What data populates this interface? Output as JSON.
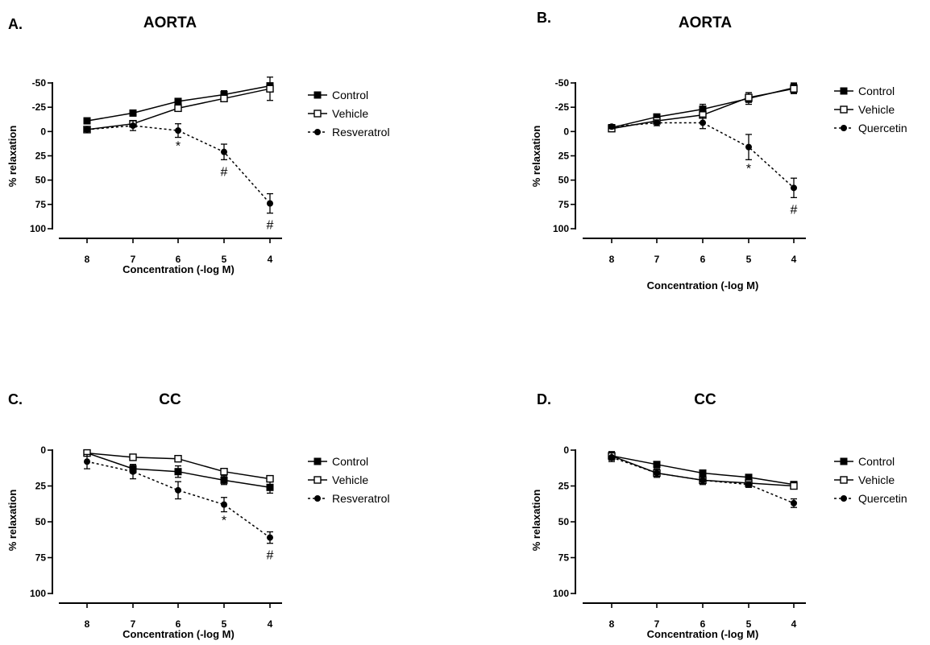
{
  "chart_data": [
    {
      "type": "line",
      "panel_label": "A.",
      "title": "AORTA",
      "xlabel": "Concentration (-log M)",
      "ylabel": "% relaxation",
      "x_ticks": [
        "8",
        "7",
        "6",
        "5",
        "4"
      ],
      "y_ticks": [
        "-50",
        "-25",
        "0",
        "25",
        "50",
        "75",
        "100"
      ],
      "ylim": [
        -50,
        100
      ],
      "y_reversed": true,
      "legend_position": "right",
      "series": [
        {
          "name": "Control",
          "marker": "filled-square",
          "line": "solid",
          "x": [
            8,
            7,
            6,
            5,
            4
          ],
          "y": [
            -11,
            -19,
            -31,
            -38,
            -47
          ],
          "err": [
            2,
            3,
            3,
            4,
            3
          ]
        },
        {
          "name": "Vehicle",
          "marker": "open-square",
          "line": "solid",
          "x": [
            8,
            7,
            6,
            5,
            4
          ],
          "y": [
            -2,
            -8,
            -24,
            -34,
            -44
          ],
          "err": [
            2,
            3,
            3,
            3,
            12
          ]
        },
        {
          "name": "Resveratrol",
          "marker": "filled-circle",
          "line": "dashed",
          "x": [
            8,
            7,
            6,
            5,
            4
          ],
          "y": [
            -2,
            -6,
            -1,
            21,
            74
          ],
          "err": [
            2,
            5,
            7,
            8,
            10
          ]
        }
      ],
      "annotations": [
        {
          "text": "*",
          "x": 6
        },
        {
          "text": "#",
          "x": 5
        },
        {
          "text": "#",
          "x": 4
        }
      ]
    },
    {
      "type": "line",
      "panel_label": "B.",
      "title": "AORTA",
      "xlabel": "Concentration (-log M)",
      "ylabel": "% relaxation",
      "x_ticks": [
        "8",
        "7",
        "6",
        "5",
        "4"
      ],
      "y_ticks": [
        "-50",
        "-25",
        "0",
        "25",
        "50",
        "75",
        "100"
      ],
      "ylim": [
        -50,
        100
      ],
      "y_reversed": true,
      "legend_position": "right",
      "series": [
        {
          "name": "Control",
          "marker": "filled-square",
          "line": "solid",
          "x": [
            8,
            7,
            6,
            5,
            4
          ],
          "y": [
            -4,
            -15,
            -23,
            -34,
            -45
          ],
          "err": [
            2,
            3,
            5,
            6,
            5
          ]
        },
        {
          "name": "Vehicle",
          "marker": "open-square",
          "line": "solid",
          "x": [
            8,
            7,
            6,
            5,
            4
          ],
          "y": [
            -3,
            -11,
            -17,
            -35,
            -44
          ],
          "err": [
            2,
            3,
            3,
            5,
            5
          ]
        },
        {
          "name": "Quercetin",
          "marker": "filled-circle",
          "line": "dashed",
          "x": [
            8,
            7,
            6,
            5,
            4
          ],
          "y": [
            -5,
            -9,
            -9,
            16,
            58
          ],
          "err": [
            2,
            3,
            6,
            13,
            10
          ]
        }
      ],
      "annotations": [
        {
          "text": "*",
          "x": 5
        },
        {
          "text": "#",
          "x": 4
        }
      ]
    },
    {
      "type": "line",
      "panel_label": "C.",
      "title": "CC",
      "xlabel": "Concentration (-log M)",
      "ylabel": "% relaxation",
      "x_ticks": [
        "8",
        "7",
        "6",
        "5",
        "4"
      ],
      "y_ticks": [
        "0",
        "25",
        "50",
        "75",
        "100"
      ],
      "ylim": [
        0,
        100
      ],
      "y_reversed": true,
      "legend_position": "right",
      "series": [
        {
          "name": "Control",
          "marker": "filled-square",
          "line": "solid",
          "x": [
            8,
            7,
            6,
            5,
            4
          ],
          "y": [
            2,
            13,
            15,
            21,
            26
          ],
          "err": [
            1,
            3,
            4,
            3,
            4
          ]
        },
        {
          "name": "Vehicle",
          "marker": "open-square",
          "line": "solid",
          "x": [
            8,
            7,
            6,
            5,
            4
          ],
          "y": [
            2,
            5,
            6,
            15,
            20
          ],
          "err": [
            1,
            1,
            1,
            1,
            2
          ]
        },
        {
          "name": "Resveratrol",
          "marker": "filled-circle",
          "line": "dashed",
          "x": [
            8,
            7,
            6,
            5,
            4
          ],
          "y": [
            8,
            15,
            28,
            38,
            61
          ],
          "err": [
            5,
            5,
            6,
            5,
            4
          ]
        }
      ],
      "annotations": [
        {
          "text": "*",
          "x": 5
        },
        {
          "text": "#",
          "x": 4
        }
      ]
    },
    {
      "type": "line",
      "panel_label": "D.",
      "title": "CC",
      "xlabel": "Concentration (-log M)",
      "ylabel": "% relaxation",
      "x_ticks": [
        "8",
        "7",
        "6",
        "5",
        "4"
      ],
      "y_ticks": [
        "0",
        "25",
        "50",
        "75",
        "100"
      ],
      "ylim": [
        0,
        100
      ],
      "y_reversed": true,
      "legend_position": "right",
      "series": [
        {
          "name": "Control",
          "marker": "filled-square",
          "line": "solid",
          "x": [
            8,
            7,
            6,
            5,
            4
          ],
          "y": [
            4,
            10,
            16,
            19,
            24
          ],
          "err": [
            2,
            1,
            2,
            2,
            2
          ]
        },
        {
          "name": "Vehicle",
          "marker": "open-square",
          "line": "solid",
          "x": [
            8,
            7,
            6,
            5,
            4
          ],
          "y": [
            4,
            16,
            21,
            23,
            25
          ],
          "err": [
            3,
            2,
            2,
            2,
            2
          ]
        },
        {
          "name": "Quercetin",
          "marker": "filled-circle",
          "line": "dashed",
          "x": [
            8,
            7,
            6,
            5,
            4
          ],
          "y": [
            5,
            16,
            21,
            24,
            37
          ],
          "err": [
            3,
            3,
            3,
            2,
            3
          ]
        }
      ],
      "annotations": []
    }
  ]
}
